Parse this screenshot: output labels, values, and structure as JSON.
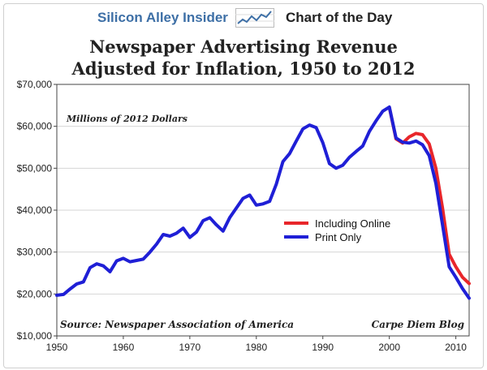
{
  "header": {
    "brand": "Silicon Alley Insider",
    "chart_of_day": "Chart of the Day"
  },
  "chart_data": {
    "type": "line",
    "title_line1": "Newspaper Advertising Revenue",
    "title_line2": "Adjusted for Inflation, 1950 to 2012",
    "subtitle": "Millions of 2012 Dollars",
    "source": "Source: Newspaper Association of America",
    "credit": "Carpe Diem Blog",
    "xlim": [
      1950,
      2012
    ],
    "ylim": [
      10000,
      70000
    ],
    "x_ticks": [
      1950,
      1960,
      1970,
      1980,
      1990,
      2000,
      2010
    ],
    "y_ticks": [
      10000,
      20000,
      30000,
      40000,
      50000,
      60000,
      70000
    ],
    "y_tick_labels": [
      "$10,000",
      "$20,000",
      "$30,000",
      "$40,000",
      "$50,000",
      "$60,000",
      "$70,000"
    ],
    "grid": "horizontal",
    "legend_position": "right-middle",
    "series": [
      {
        "name": "Including Online",
        "color": "#e8262b",
        "x": [
          2000,
          2001,
          2002,
          2003,
          2004,
          2005,
          2006,
          2007,
          2008,
          2009,
          2010,
          2011,
          2012
        ],
        "y": [
          64500,
          57000,
          56000,
          57500,
          58300,
          58000,
          55800,
          50000,
          40500,
          29500,
          26500,
          24000,
          22500
        ]
      },
      {
        "name": "Print Only",
        "color": "#1f1fd6",
        "x": [
          1950,
          1951,
          1952,
          1953,
          1954,
          1955,
          1956,
          1957,
          1958,
          1959,
          1960,
          1961,
          1962,
          1963,
          1964,
          1965,
          1966,
          1967,
          1968,
          1969,
          1970,
          1971,
          1972,
          1973,
          1974,
          1975,
          1976,
          1977,
          1978,
          1979,
          1980,
          1981,
          1982,
          1983,
          1984,
          1985,
          1986,
          1987,
          1988,
          1989,
          1990,
          1991,
          1992,
          1993,
          1994,
          1995,
          1996,
          1997,
          1998,
          1999,
          2000,
          2001,
          2002,
          2003,
          2004,
          2005,
          2006,
          2007,
          2008,
          2009,
          2010,
          2011,
          2012
        ],
        "y": [
          19700,
          19900,
          21200,
          22400,
          22900,
          26300,
          27200,
          26700,
          25300,
          27900,
          28500,
          27700,
          28000,
          28300,
          30000,
          31900,
          34200,
          33800,
          34500,
          35700,
          33500,
          34800,
          37500,
          38200,
          36500,
          35000,
          38200,
          40500,
          42800,
          43600,
          41200,
          41500,
          42100,
          46200,
          51600,
          53500,
          56500,
          59400,
          60300,
          59700,
          56100,
          51100,
          50000,
          50700,
          52600,
          54000,
          55300,
          58800,
          61300,
          63600,
          64600,
          57200,
          56200,
          56000,
          56500,
          55600,
          53000,
          46400,
          36500,
          26500,
          24000,
          21300,
          19000
        ]
      }
    ]
  }
}
